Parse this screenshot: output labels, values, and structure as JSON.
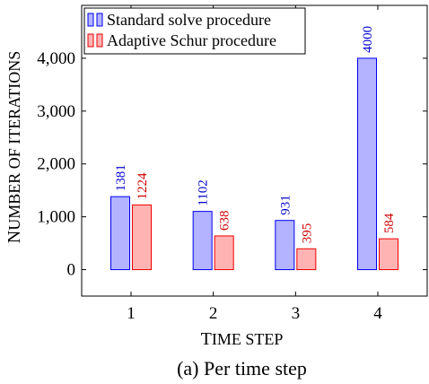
{
  "chart_data": {
    "type": "bar",
    "categories": [
      "1",
      "2",
      "3",
      "4"
    ],
    "series": [
      {
        "name": "Standard solve procedure",
        "values": [
          1381,
          1102,
          931,
          4000
        ],
        "labels": [
          "1381",
          "1102",
          "931",
          "4000"
        ],
        "fill": "#b3b3ff",
        "stroke": "#0000ee",
        "label_color": "#0000cc"
      },
      {
        "name": "Adaptive Schur procedure",
        "values": [
          1224,
          638,
          395,
          584
        ],
        "labels": [
          "1224",
          "638",
          "395",
          "584"
        ],
        "fill": "#ffb3b3",
        "stroke": "#ee0000",
        "label_color": "#cc0000"
      }
    ],
    "yticks": [
      0,
      1000,
      2000,
      3000,
      4000
    ],
    "ytick_labels": [
      "0",
      "1,000",
      "2,000",
      "3,000",
      "4,000"
    ],
    "ylim": [
      -500,
      5000
    ],
    "xlim": [
      0.4,
      4.6
    ],
    "xlabel": {
      "first": "T",
      "rest": "IME STEP"
    },
    "ylabel": {
      "first": "N",
      "rest": "UMBER OF ITERATIONS"
    },
    "legend_position": "top-left",
    "grid": false
  },
  "caption": "(a)  Per time step"
}
